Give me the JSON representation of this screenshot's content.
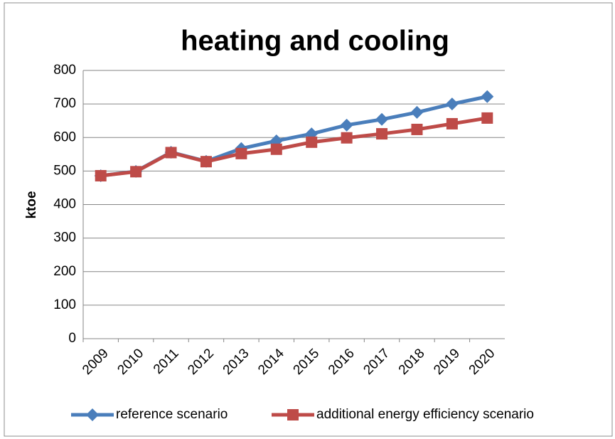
{
  "chart_data": {
    "type": "line",
    "title": "heating and cooling",
    "y_label": "ktoe",
    "categories": [
      "2009",
      "2010",
      "2011",
      "2012",
      "2013",
      "2014",
      "2015",
      "2016",
      "2017",
      "2018",
      "2019",
      "2020"
    ],
    "series": [
      {
        "name": "reference scenario",
        "color": "#4a7ebb",
        "marker": "diamond",
        "values": [
          486,
          499,
          556,
          529,
          567,
          590,
          611,
          637,
          654,
          675,
          700,
          722
        ]
      },
      {
        "name": "additional energy efficiency scenario",
        "color": "#be4b48",
        "marker": "square",
        "values": [
          486,
          498,
          555,
          528,
          552,
          565,
          586,
          599,
          611,
          624,
          641,
          658
        ]
      }
    ],
    "ylim": [
      0,
      800
    ],
    "yticks": [
      0,
      100,
      200,
      300,
      400,
      500,
      600,
      700,
      800
    ],
    "grid": true,
    "legend": "bottom"
  }
}
